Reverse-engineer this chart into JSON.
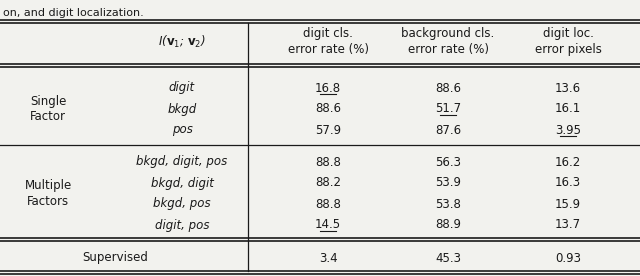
{
  "bg_color": "#f2f2ee",
  "text_color": "#1a1a1a",
  "sections": [
    {
      "group_label": "Single\nFactor",
      "rows": [
        {
          "factor": "digit",
          "v1": "16.8",
          "v2": "88.6",
          "v3": "13.6",
          "ul1": true,
          "ul2": false,
          "ul3": false
        },
        {
          "factor": "bkgd",
          "v1": "88.6",
          "v2": "51.7",
          "v3": "16.1",
          "ul1": false,
          "ul2": true,
          "ul3": false
        },
        {
          "factor": "pos",
          "v1": "57.9",
          "v2": "87.6",
          "v3": "3.95",
          "ul1": false,
          "ul2": false,
          "ul3": true
        }
      ]
    },
    {
      "group_label": "Multiple\nFactors",
      "rows": [
        {
          "factor": "bkgd, digit, pos",
          "v1": "88.8",
          "v2": "56.3",
          "v3": "16.2",
          "ul1": false,
          "ul2": false,
          "ul3": false
        },
        {
          "factor": "bkgd, digit",
          "v1": "88.2",
          "v2": "53.9",
          "v3": "16.3",
          "ul1": false,
          "ul2": false,
          "ul3": false
        },
        {
          "factor": "bkgd, pos",
          "v1": "88.8",
          "v2": "53.8",
          "v3": "15.9",
          "ul1": false,
          "ul2": false,
          "ul3": false
        },
        {
          "factor": "digit, pos",
          "v1": "14.5",
          "v2": "88.9",
          "v3": "13.7",
          "ul1": true,
          "ul2": false,
          "ul3": false
        }
      ]
    }
  ],
  "supervised": {
    "label": "Supervised",
    "v1": "3.4",
    "v2": "45.3",
    "v3": "0.93"
  }
}
